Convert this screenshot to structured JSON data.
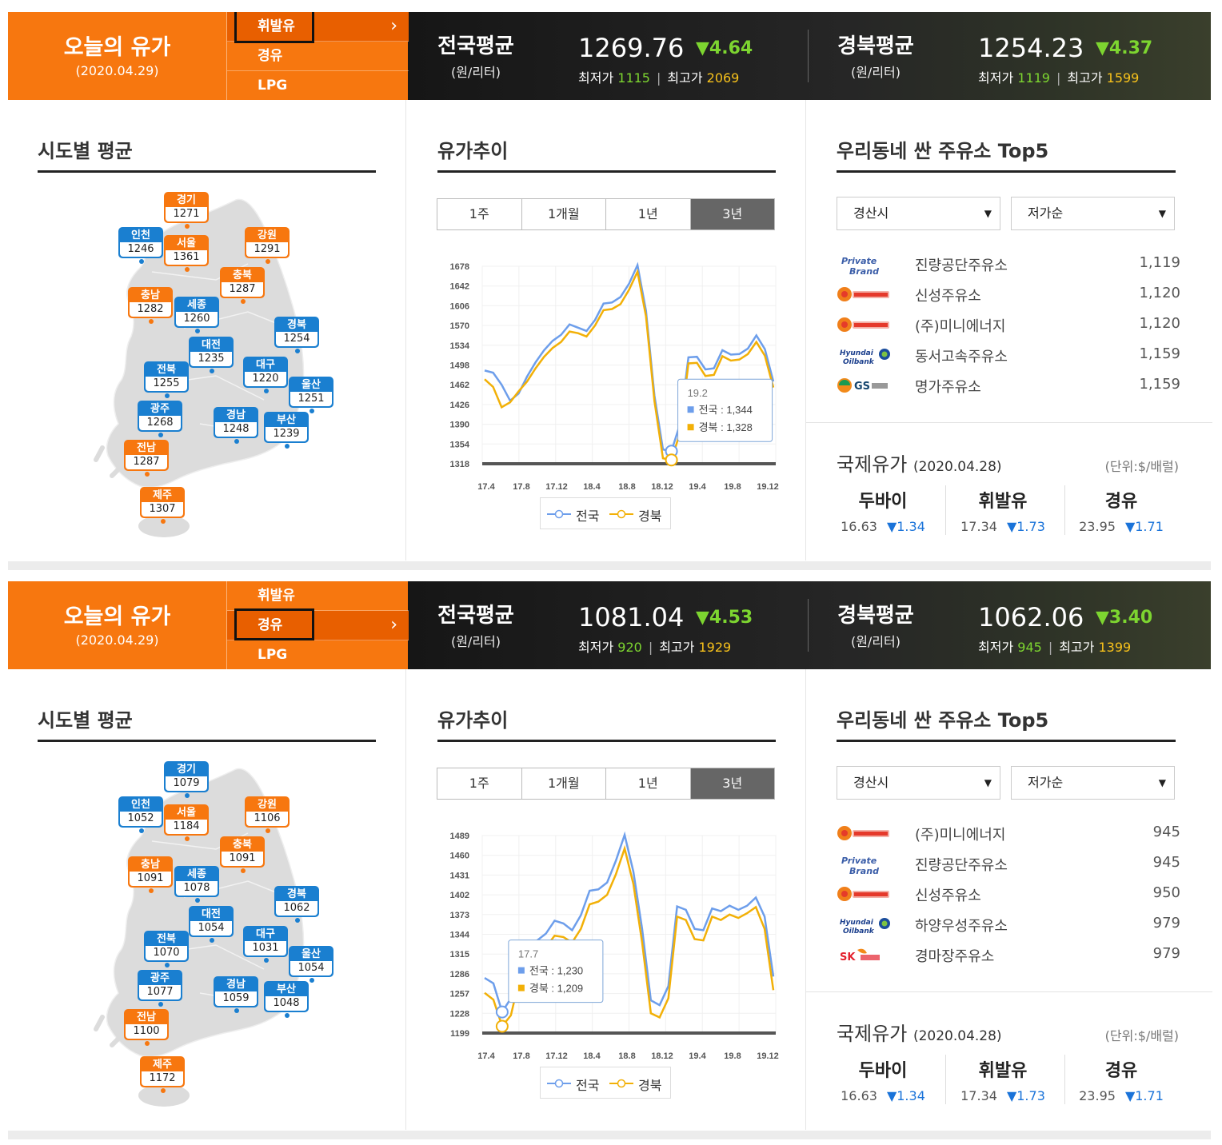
{
  "panels": [
    {
      "header": {
        "title": "오늘의 유가",
        "date": "(2020.04.29)",
        "fuel_tabs": [
          "휘발유",
          "경유",
          "LPG"
        ],
        "active_tab": 0,
        "national": {
          "name": "전국평균",
          "unit": "(원/리터)",
          "value": "1269.76",
          "change": "▼4.64",
          "min_label": "최저가",
          "min": "1115",
          "max_label": "최고가",
          "max": "2069"
        },
        "regional": {
          "name": "경북평균",
          "unit": "(원/리터)",
          "value": "1254.23",
          "change": "▼4.37",
          "min_label": "최저가",
          "min": "1119",
          "max_label": "최고가",
          "max": "1599"
        }
      },
      "region_section": {
        "title": "시도별 평균",
        "regions": [
          {
            "name": "경기",
            "value": "1271",
            "color": "orange"
          },
          {
            "name": "인천",
            "value": "1246",
            "color": "blue"
          },
          {
            "name": "서울",
            "value": "1361",
            "color": "orange"
          },
          {
            "name": "강원",
            "value": "1291",
            "color": "orange"
          },
          {
            "name": "충북",
            "value": "1287",
            "color": "orange"
          },
          {
            "name": "충남",
            "value": "1282",
            "color": "orange"
          },
          {
            "name": "세종",
            "value": "1260",
            "color": "blue"
          },
          {
            "name": "경북",
            "value": "1254",
            "color": "blue"
          },
          {
            "name": "대전",
            "value": "1235",
            "color": "blue"
          },
          {
            "name": "전북",
            "value": "1255",
            "color": "blue"
          },
          {
            "name": "대구",
            "value": "1220",
            "color": "blue"
          },
          {
            "name": "울산",
            "value": "1251",
            "color": "blue"
          },
          {
            "name": "광주",
            "value": "1268",
            "color": "blue"
          },
          {
            "name": "경남",
            "value": "1248",
            "color": "blue"
          },
          {
            "name": "부산",
            "value": "1239",
            "color": "blue"
          },
          {
            "name": "전남",
            "value": "1287",
            "color": "orange"
          },
          {
            "name": "제주",
            "value": "1307",
            "color": "orange"
          }
        ]
      },
      "trend_section": {
        "title": "유가추이",
        "ranges": [
          "1주",
          "1개월",
          "1년",
          "3년"
        ],
        "active_range": 3,
        "legend": [
          "전국",
          "경북"
        ],
        "tooltip": {
          "label": "19.2",
          "national": "전국 : 1,344",
          "regional": "경북 : 1,328"
        }
      },
      "stations_section": {
        "title": "우리동네 싼 주유소 Top5",
        "city_select": "경산시",
        "sort_select": "저가순",
        "stations": [
          {
            "brand": "private-brand",
            "name": "진량공단주유소",
            "price": "1,119"
          },
          {
            "brand": "altteul",
            "name": "신성주유소",
            "price": "1,120"
          },
          {
            "brand": "altteul",
            "name": "(주)미니에너지",
            "price": "1,120"
          },
          {
            "brand": "hyundai-oilbank",
            "name": "동서고속주유소",
            "price": "1,159"
          },
          {
            "brand": "gs-caltex",
            "name": "명가주유소",
            "price": "1,159"
          }
        ]
      },
      "intl_section": {
        "title": "국제유가",
        "date": "(2020.04.28)",
        "unit": "(단위:$/배럴)",
        "items": [
          {
            "name": "두바이",
            "value": "16.63",
            "change": "▼1.34"
          },
          {
            "name": "휘발유",
            "value": "17.34",
            "change": "▼1.73"
          },
          {
            "name": "경유",
            "value": "23.95",
            "change": "▼1.71"
          }
        ]
      },
      "chart_data": {
        "type": "line",
        "x_ticks": [
          "17.4",
          "17.8",
          "17.12",
          "18.4",
          "18.8",
          "18.12",
          "19.4",
          "19.8",
          "19.12"
        ],
        "y_ticks": [
          1318,
          1354,
          1390,
          1426,
          1462,
          1498,
          1534,
          1570,
          1606,
          1642,
          1678
        ],
        "ylim": [
          1318,
          1678
        ],
        "series": [
          {
            "name": "전국",
            "color": "#6d9eeb",
            "values": [
              1488,
              1484,
              1462,
              1433,
              1446,
              1477,
              1503,
              1525,
              1542,
              1553,
              1572,
              1566,
              1560,
              1580,
              1610,
              1612,
              1622,
              1646,
              1680,
              1597,
              1442,
              1344,
              1341,
              1390,
              1512,
              1513,
              1490,
              1492,
              1525,
              1517,
              1518,
              1528,
              1552,
              1527,
              1468
            ]
          },
          {
            "name": "경북",
            "color": "#f2b007",
            "values": [
              1472,
              1458,
              1421,
              1430,
              1450,
              1468,
              1492,
              1513,
              1529,
              1540,
              1559,
              1556,
              1550,
              1570,
              1598,
              1600,
              1609,
              1635,
              1668,
              1587,
              1432,
              1328,
              1325,
              1374,
              1501,
              1502,
              1478,
              1480,
              1514,
              1506,
              1508,
              1518,
              1540,
              1515,
              1457
            ]
          }
        ]
      }
    },
    {
      "header": {
        "title": "오늘의 유가",
        "date": "(2020.04.29)",
        "fuel_tabs": [
          "휘발유",
          "경유",
          "LPG"
        ],
        "active_tab": 1,
        "national": {
          "name": "전국평균",
          "unit": "(원/리터)",
          "value": "1081.04",
          "change": "▼4.53",
          "min_label": "최저가",
          "min": "920",
          "max_label": "최고가",
          "max": "1929"
        },
        "regional": {
          "name": "경북평균",
          "unit": "(원/리터)",
          "value": "1062.06",
          "change": "▼3.40",
          "min_label": "최저가",
          "min": "945",
          "max_label": "최고가",
          "max": "1399"
        }
      },
      "region_section": {
        "title": "시도별 평균",
        "regions": [
          {
            "name": "경기",
            "value": "1079",
            "color": "blue"
          },
          {
            "name": "인천",
            "value": "1052",
            "color": "blue"
          },
          {
            "name": "서울",
            "value": "1184",
            "color": "orange"
          },
          {
            "name": "강원",
            "value": "1106",
            "color": "orange"
          },
          {
            "name": "충북",
            "value": "1091",
            "color": "orange"
          },
          {
            "name": "충남",
            "value": "1091",
            "color": "orange"
          },
          {
            "name": "세종",
            "value": "1078",
            "color": "blue"
          },
          {
            "name": "경북",
            "value": "1062",
            "color": "blue"
          },
          {
            "name": "대전",
            "value": "1054",
            "color": "blue"
          },
          {
            "name": "전북",
            "value": "1070",
            "color": "blue"
          },
          {
            "name": "대구",
            "value": "1031",
            "color": "blue"
          },
          {
            "name": "울산",
            "value": "1054",
            "color": "blue"
          },
          {
            "name": "광주",
            "value": "1077",
            "color": "blue"
          },
          {
            "name": "경남",
            "value": "1059",
            "color": "blue"
          },
          {
            "name": "부산",
            "value": "1048",
            "color": "blue"
          },
          {
            "name": "전남",
            "value": "1100",
            "color": "orange"
          },
          {
            "name": "제주",
            "value": "1172",
            "color": "orange"
          }
        ]
      },
      "trend_section": {
        "title": "유가추이",
        "ranges": [
          "1주",
          "1개월",
          "1년",
          "3년"
        ],
        "active_range": 3,
        "legend": [
          "전국",
          "경북"
        ],
        "tooltip": {
          "label": "17.7",
          "national": "전국 : 1,230",
          "regional": "경북 : 1,209"
        }
      },
      "stations_section": {
        "title": "우리동네 싼 주유소 Top5",
        "city_select": "경산시",
        "sort_select": "저가순",
        "stations": [
          {
            "brand": "altteul",
            "name": "(주)미니에너지",
            "price": "945"
          },
          {
            "brand": "private-brand",
            "name": "진량공단주유소",
            "price": "945"
          },
          {
            "brand": "altteul",
            "name": "신성주유소",
            "price": "950"
          },
          {
            "brand": "hyundai-oilbank",
            "name": "하양우성주유소",
            "price": "979"
          },
          {
            "brand": "sk-energy",
            "name": "경마장주유소",
            "price": "979"
          }
        ]
      },
      "intl_section": {
        "title": "국제유가",
        "date": "(2020.04.28)",
        "unit": "(단위:$/배럴)",
        "items": [
          {
            "name": "두바이",
            "value": "16.63",
            "change": "▼1.34"
          },
          {
            "name": "휘발유",
            "value": "17.34",
            "change": "▼1.73"
          },
          {
            "name": "경유",
            "value": "23.95",
            "change": "▼1.71"
          }
        ]
      },
      "chart_data": {
        "type": "line",
        "x_ticks": [
          "17.4",
          "17.8",
          "17.12",
          "18.4",
          "18.8",
          "18.12",
          "19.4",
          "19.8",
          "19.12"
        ],
        "y_ticks": [
          1199,
          1228,
          1257,
          1286,
          1315,
          1344,
          1373,
          1402,
          1431,
          1460,
          1489
        ],
        "ylim": [
          1199,
          1489
        ],
        "series": [
          {
            "name": "전국",
            "color": "#6d9eeb",
            "values": [
              1280,
              1272,
              1230,
              1250,
              1300,
              1322,
              1335,
              1345,
              1364,
              1360,
              1350,
              1372,
              1408,
              1410,
              1420,
              1452,
              1490,
              1436,
              1352,
              1247,
              1240,
              1268,
              1385,
              1380,
              1352,
              1350,
              1382,
              1378,
              1386,
              1380,
              1386,
              1398,
              1370,
              1282
            ]
          },
          {
            "name": "경북",
            "color": "#f2b007",
            "values": [
              1258,
              1248,
              1209,
              1225,
              1280,
              1300,
              1315,
              1325,
              1342,
              1340,
              1332,
              1352,
              1388,
              1392,
              1402,
              1432,
              1470,
              1418,
              1332,
              1228,
              1222,
              1250,
              1370,
              1365,
              1337,
              1335,
              1370,
              1365,
              1373,
              1368,
              1375,
              1384,
              1352,
              1262
            ]
          }
        ]
      }
    }
  ]
}
